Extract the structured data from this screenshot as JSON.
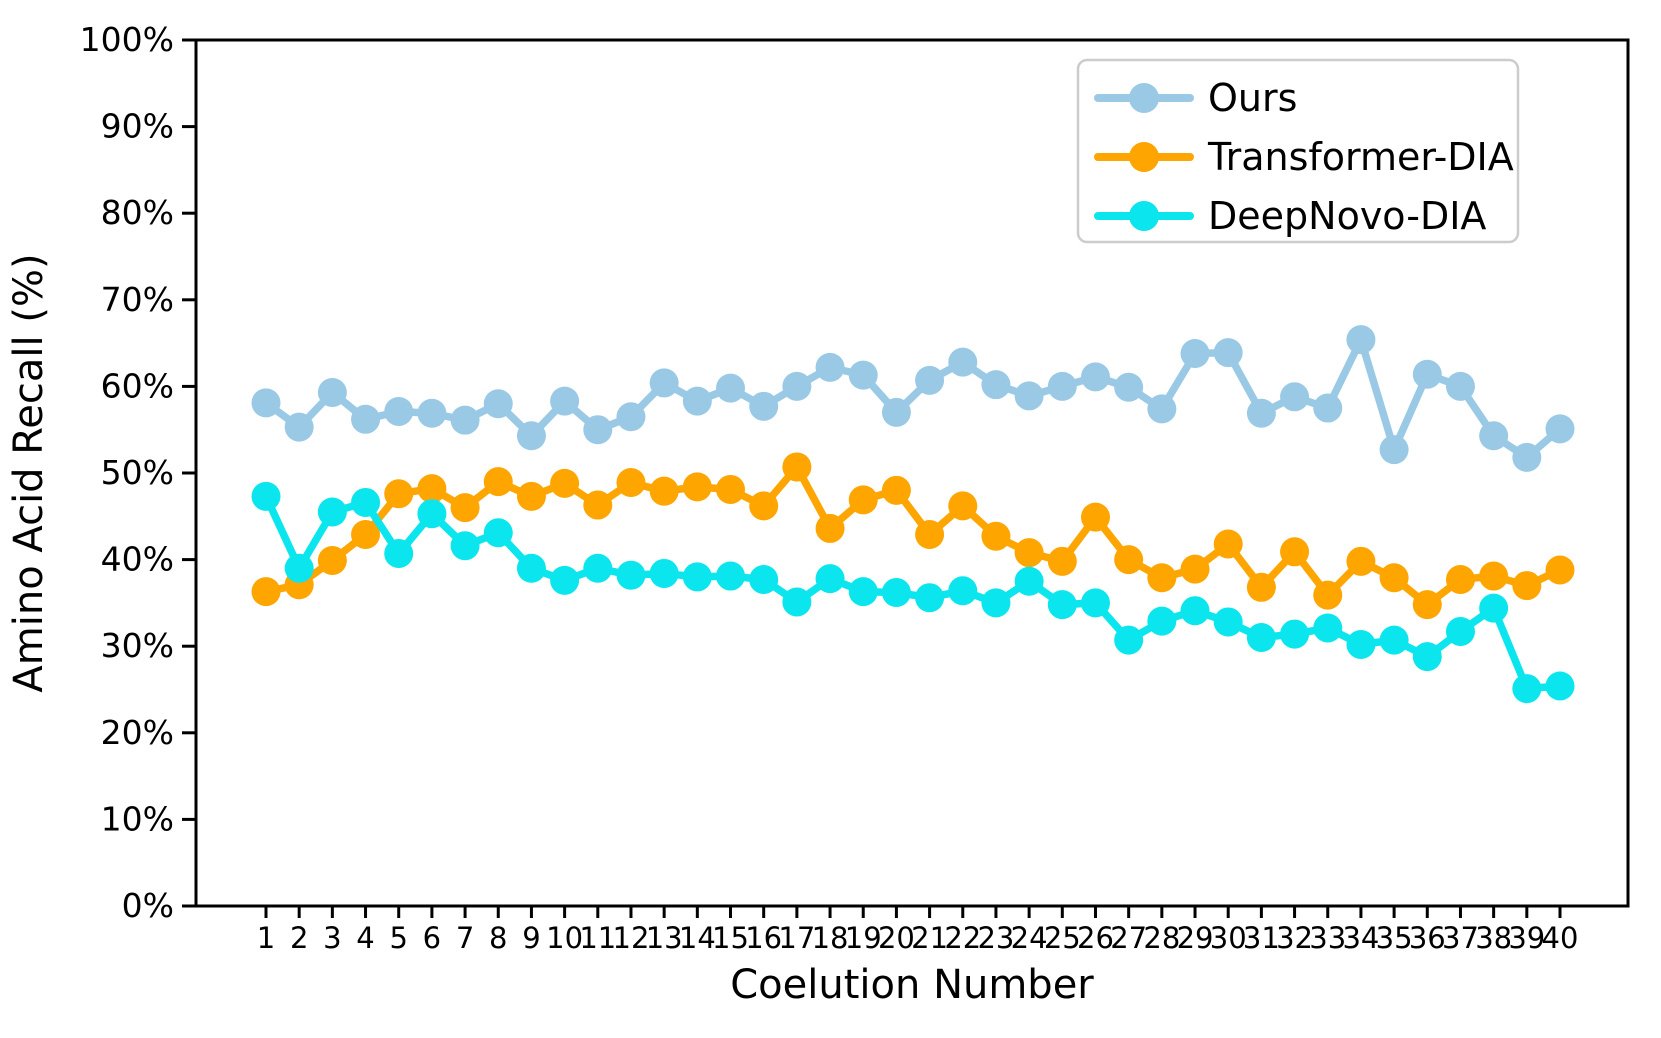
{
  "figure": {
    "background": "#ffffff",
    "axis_color": "#000000"
  },
  "chart_data": {
    "type": "line",
    "title": "",
    "xlabel": "Coelution Number",
    "ylabel": "Amino Acid Recall (%)",
    "ylim": [
      0,
      100
    ],
    "y_tick_step": 10,
    "grid": false,
    "legend_position": "upper right",
    "x": [
      1,
      2,
      3,
      4,
      5,
      6,
      7,
      8,
      9,
      10,
      11,
      12,
      13,
      14,
      15,
      16,
      17,
      18,
      19,
      20,
      21,
      22,
      23,
      24,
      25,
      26,
      27,
      28,
      29,
      30,
      31,
      32,
      33,
      34,
      35,
      36,
      37,
      38,
      39,
      40
    ],
    "x_tick_labels": [
      "1",
      "2",
      "3",
      "4",
      "5",
      "6",
      "7",
      "8",
      "9",
      "10",
      "11",
      "12",
      "13",
      "14",
      "15",
      "16",
      "17",
      "18",
      "19",
      "20",
      "21",
      "22",
      "23",
      "24",
      "25",
      "26",
      "27",
      "28",
      "29",
      "30",
      "31",
      "32",
      "33",
      "34",
      "35",
      "36",
      "37",
      "38",
      "39",
      "40"
    ],
    "y_tick_labels": [
      "0%",
      "10%",
      "20%",
      "30%",
      "40%",
      "50%",
      "60%",
      "70%",
      "80%",
      "90%",
      "100%"
    ],
    "series": [
      {
        "name": "Ours",
        "color": "#9ac9e6",
        "values": [
          58.1,
          55.3,
          59.3,
          56.2,
          57.1,
          56.9,
          56.1,
          58.0,
          54.3,
          58.3,
          55.0,
          56.5,
          60.4,
          58.3,
          59.8,
          57.7,
          60.0,
          62.2,
          61.3,
          57.0,
          60.7,
          62.8,
          60.2,
          58.9,
          60.0,
          61.1,
          59.9,
          57.4,
          63.8,
          63.9,
          56.9,
          58.8,
          57.5,
          65.4,
          52.7,
          61.4,
          60.0,
          54.3,
          51.8,
          55.1
        ]
      },
      {
        "name": "Transformer-DIA",
        "color": "#ffa500",
        "values": [
          36.3,
          37.1,
          39.9,
          42.9,
          47.6,
          48.2,
          46.0,
          49.0,
          47.3,
          48.8,
          46.3,
          48.9,
          47.9,
          48.4,
          48.1,
          46.2,
          50.7,
          43.6,
          46.9,
          48.0,
          42.9,
          46.2,
          42.7,
          40.8,
          39.8,
          44.9,
          40.0,
          37.9,
          38.9,
          41.8,
          36.8,
          40.9,
          35.9,
          39.8,
          37.9,
          34.8,
          37.7,
          38.1,
          37.0,
          38.8
        ]
      },
      {
        "name": "DeepNovo-DIA",
        "color": "#0ae5ee",
        "values": [
          47.3,
          39.0,
          45.5,
          46.6,
          40.7,
          45.3,
          41.6,
          43.1,
          39.0,
          37.6,
          39.0,
          38.2,
          38.4,
          38.0,
          38.1,
          37.7,
          35.1,
          37.8,
          36.3,
          36.2,
          35.6,
          36.4,
          35.0,
          37.5,
          34.8,
          35.0,
          30.7,
          32.9,
          34.1,
          32.8,
          31.0,
          31.4,
          32.1,
          30.2,
          30.7,
          28.8,
          31.7,
          34.4,
          25.1,
          25.4
        ]
      }
    ]
  }
}
